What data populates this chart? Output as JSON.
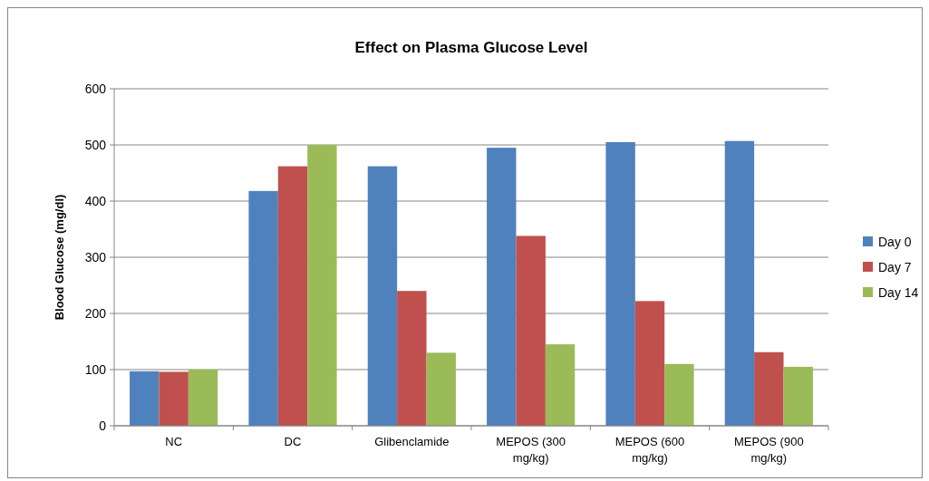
{
  "chart_data": {
    "type": "bar",
    "title": "Effect on Plasma Glucose Level",
    "ylabel": "Blood Glucose (mg/dl)",
    "categories": [
      "NC",
      "DC",
      "Glibenclamide",
      "MEPOS (300 mg/kg)",
      "MEPOS (600 mg/kg)",
      "MEPOS (900 mg/kg)"
    ],
    "series": [
      {
        "name": "Day 0",
        "color": "#4f81bd",
        "values": [
          97,
          418,
          462,
          495,
          505,
          507
        ]
      },
      {
        "name": "Day 7",
        "color": "#c0504d",
        "values": [
          96,
          462,
          240,
          338,
          222,
          131
        ]
      },
      {
        "name": "Day 14",
        "color": "#9bbb59",
        "values": [
          100,
          500,
          130,
          145,
          110,
          105
        ]
      }
    ],
    "ylim": [
      0,
      600
    ],
    "yticks": [
      0,
      100,
      200,
      300,
      400,
      500,
      600
    ],
    "grid": "y",
    "legend": "right"
  }
}
